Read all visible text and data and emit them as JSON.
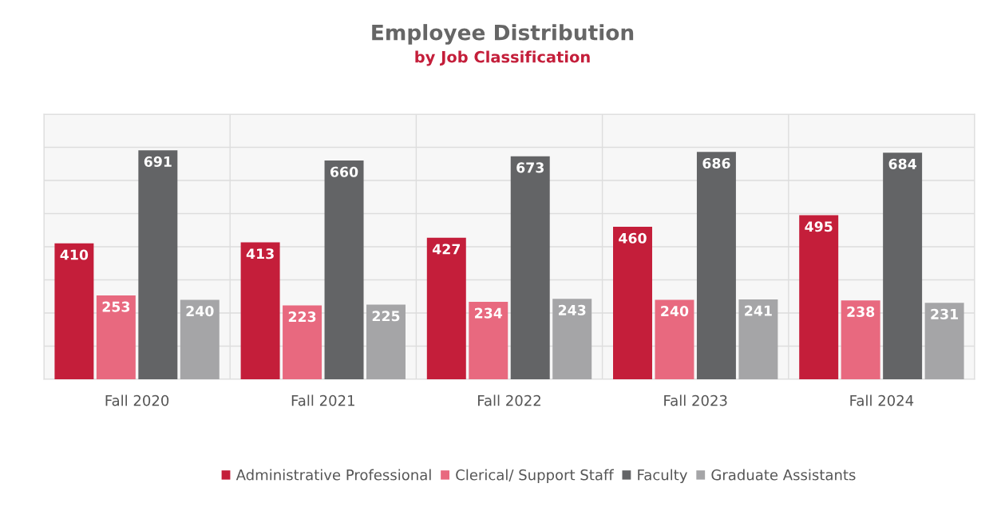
{
  "chart_data": {
    "type": "bar",
    "title": "Employee Distribution",
    "subtitle": "by Job Classification",
    "categories": [
      "Fall 2020",
      "Fall 2021",
      "Fall 2022",
      "Fall 2023",
      "Fall 2024"
    ],
    "series": [
      {
        "name": "Administrative Professional",
        "color": "#c41e3a",
        "values": [
          410,
          413,
          427,
          460,
          495
        ]
      },
      {
        "name": "Clerical/ Support Staff",
        "color": "#e8697f",
        "values": [
          253,
          223,
          234,
          240,
          238
        ]
      },
      {
        "name": "Faculty",
        "color": "#636466",
        "values": [
          691,
          660,
          673,
          686,
          684
        ]
      },
      {
        "name": "Graduate Assistants",
        "color": "#a5a5a7",
        "values": [
          240,
          225,
          243,
          241,
          231
        ]
      }
    ],
    "ylim": [
      0,
      800
    ],
    "yticks": [
      {
        "value": 0,
        "label": null
      },
      {
        "value": 100,
        "label": null
      },
      {
        "value": 200,
        "label": null
      },
      {
        "value": 300,
        "label": null
      },
      {
        "value": 400,
        "label": null
      },
      {
        "value": 500,
        "label": null
      },
      {
        "value": 600,
        "label": null
      },
      {
        "value": 700,
        "label": null
      },
      {
        "value": 800,
        "label": null
      }
    ],
    "tick_labels": "x",
    "grid": true,
    "data_labels": true,
    "legend": "bottom"
  }
}
